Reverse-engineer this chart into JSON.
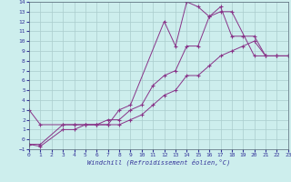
{
  "xlabel": "Windchill (Refroidissement éolien,°C)",
  "background_color": "#cdeeed",
  "grid_color": "#aacccc",
  "line_color": "#883388",
  "xlim": [
    0,
    23
  ],
  "ylim": [
    -1,
    14
  ],
  "xticks": [
    0,
    1,
    2,
    3,
    4,
    5,
    6,
    7,
    8,
    9,
    10,
    11,
    12,
    13,
    14,
    15,
    16,
    17,
    18,
    19,
    20,
    21,
    22,
    23
  ],
  "yticks": [
    -1,
    0,
    1,
    2,
    3,
    4,
    5,
    6,
    7,
    8,
    9,
    10,
    11,
    12,
    13,
    14
  ],
  "series": [
    {
      "x": [
        0,
        1,
        3,
        4,
        5,
        6,
        7,
        8,
        9,
        12,
        13,
        14,
        15,
        16,
        17,
        18,
        20,
        21,
        22,
        23
      ],
      "y": [
        3.0,
        1.5,
        1.5,
        1.5,
        1.5,
        1.5,
        1.5,
        3.0,
        3.5,
        12.0,
        9.5,
        14.0,
        13.5,
        12.5,
        13.0,
        13.0,
        8.5,
        8.5,
        8.5,
        8.5
      ]
    },
    {
      "x": [
        0,
        1,
        3,
        4,
        5,
        6,
        7,
        8,
        9,
        10,
        11,
        12,
        13,
        14,
        15,
        16,
        17,
        18,
        19,
        20,
        21,
        22,
        23
      ],
      "y": [
        -0.5,
        -0.5,
        1.5,
        1.5,
        1.5,
        1.5,
        2.0,
        2.0,
        3.0,
        3.5,
        5.5,
        6.5,
        7.0,
        9.5,
        9.5,
        12.5,
        13.5,
        10.5,
        10.5,
        10.5,
        8.5,
        8.5,
        8.5
      ]
    },
    {
      "x": [
        0,
        1,
        3,
        4,
        5,
        6,
        7,
        8,
        9,
        10,
        11,
        12,
        13,
        14,
        15,
        16,
        17,
        18,
        19,
        20,
        21,
        22,
        23
      ],
      "y": [
        -0.5,
        -0.7,
        1.0,
        1.0,
        1.5,
        1.5,
        1.5,
        1.5,
        2.0,
        2.5,
        3.5,
        4.5,
        5.0,
        6.5,
        6.5,
        7.5,
        8.5,
        9.0,
        9.5,
        10.0,
        8.5,
        8.5,
        8.5
      ]
    }
  ]
}
